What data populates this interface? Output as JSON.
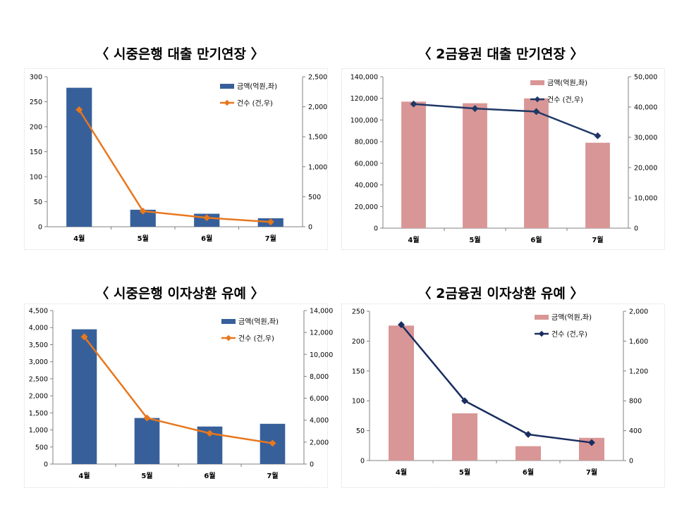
{
  "charts": [
    {
      "type": "bar+line",
      "title": "〈 시중은행 대출 만기연장 〉",
      "categories": [
        "4월",
        "5월",
        "6월",
        "7월"
      ],
      "series": [
        {
          "name": "금액(억원,좌)",
          "kind": "bar",
          "axis": "left",
          "values": [
            278,
            34,
            26,
            17
          ],
          "color": "#37609a"
        },
        {
          "name": "건수 (건,우)",
          "kind": "line",
          "axis": "right",
          "values": [
            1950,
            260,
            150,
            80
          ],
          "color": "#e8771e"
        }
      ],
      "left_axis": {
        "min": 0,
        "max": 300,
        "ticks": [
          "0",
          "50",
          "100",
          "150",
          "200",
          "250",
          "300"
        ]
      },
      "right_axis": {
        "min": 0,
        "max": 2500,
        "ticks": [
          "0",
          "500",
          "1,000",
          "1,500",
          "2,000",
          "2,500"
        ]
      },
      "legend_position": "top-right"
    },
    {
      "type": "bar+line",
      "title": "〈 2금융권 대출 만기연장 〉",
      "categories": [
        "4월",
        "5월",
        "6월",
        "7월"
      ],
      "series": [
        {
          "name": "금액(억원,좌)",
          "kind": "bar",
          "axis": "left",
          "values": [
            117000,
            115500,
            120000,
            79000
          ],
          "color": "#d99696"
        },
        {
          "name": "건수 (건,우)",
          "kind": "line",
          "axis": "right",
          "values": [
            41000,
            39500,
            38500,
            30500
          ],
          "color": "#1f3866"
        }
      ],
      "left_axis": {
        "min": 0,
        "max": 140000,
        "ticks": [
          "0",
          "20,000",
          "40,000",
          "60,000",
          "80,000",
          "100,000",
          "120,000",
          "140,000"
        ]
      },
      "right_axis": {
        "min": 0,
        "max": 50000,
        "ticks": [
          "0",
          "10,000",
          "20,000",
          "30,000",
          "40,000",
          "50,000"
        ]
      },
      "legend_position": "top-right"
    },
    {
      "type": "bar+line",
      "title": "〈 시중은행 이자상환 유예 〉",
      "categories": [
        "4월",
        "5월",
        "6월",
        "7월"
      ],
      "series": [
        {
          "name": "금액(억원,좌)",
          "kind": "bar",
          "axis": "left",
          "values": [
            3950,
            1350,
            1100,
            1180
          ],
          "color": "#37609a"
        },
        {
          "name": "건수 (건,우)",
          "kind": "line",
          "axis": "right",
          "values": [
            11600,
            4200,
            2800,
            1900
          ],
          "color": "#e8771e"
        }
      ],
      "left_axis": {
        "min": 0,
        "max": 4500,
        "ticks": [
          "0",
          "500",
          "1,000",
          "1,500",
          "2,000",
          "2,500",
          "3,000",
          "3,500",
          "4,000",
          "4,500"
        ]
      },
      "right_axis": {
        "min": 0,
        "max": 14000,
        "ticks": [
          "0",
          "2,000",
          "4,000",
          "6,000",
          "8,000",
          "10,000",
          "12,000",
          "14,000"
        ]
      },
      "legend_position": "top-right"
    },
    {
      "type": "bar+line",
      "title": "〈 2금융권 이자상환 유예 〉",
      "categories": [
        "4월",
        "5월",
        "6월",
        "7월"
      ],
      "series": [
        {
          "name": "금액(억원,좌)",
          "kind": "bar",
          "axis": "left",
          "values": [
            226,
            79,
            24,
            38
          ],
          "color": "#d99696"
        },
        {
          "name": "건수 (건,우)",
          "kind": "line",
          "axis": "right",
          "values": [
            1820,
            800,
            350,
            240
          ],
          "color": "#1a2d60"
        }
      ],
      "left_axis": {
        "min": 0,
        "max": 250,
        "ticks": [
          "0",
          "50",
          "100",
          "150",
          "200",
          "250"
        ]
      },
      "right_axis": {
        "min": 0,
        "max": 2000,
        "ticks": [
          "0",
          "400",
          "800",
          "1,200",
          "1,600",
          "2,000"
        ]
      },
      "legend_position": "top-right"
    }
  ],
  "chart_data": [
    {
      "type": "bar",
      "title": "〈 시중은행 대출 만기연장 〉",
      "categories": [
        "4월",
        "5월",
        "6월",
        "7월"
      ],
      "series": [
        {
          "name": "금액(억원,좌)",
          "values": [
            278,
            34,
            26,
            17
          ]
        },
        {
          "name": "건수 (건,우)",
          "values": [
            1950,
            260,
            150,
            80
          ]
        }
      ],
      "ylim": [
        0,
        300
      ],
      "y2lim": [
        0,
        2500
      ]
    },
    {
      "type": "bar",
      "title": "〈 2금융권 대출 만기연장 〉",
      "categories": [
        "4월",
        "5월",
        "6월",
        "7월"
      ],
      "series": [
        {
          "name": "금액(억원,좌)",
          "values": [
            117000,
            115500,
            120000,
            79000
          ]
        },
        {
          "name": "건수 (건,우)",
          "values": [
            41000,
            39500,
            38500,
            30500
          ]
        }
      ],
      "ylim": [
        0,
        140000
      ],
      "y2lim": [
        0,
        50000
      ]
    },
    {
      "type": "bar",
      "title": "〈 시중은행 이자상환 유예 〉",
      "categories": [
        "4월",
        "5월",
        "6월",
        "7월"
      ],
      "series": [
        {
          "name": "금액(억원,좌)",
          "values": [
            3950,
            1350,
            1100,
            1180
          ]
        },
        {
          "name": "건수 (건,우)",
          "values": [
            11600,
            4200,
            2800,
            1900
          ]
        }
      ],
      "ylim": [
        0,
        4500
      ],
      "y2lim": [
        0,
        14000
      ]
    },
    {
      "type": "bar",
      "title": "〈 2금융권 이자상환 유예 〉",
      "categories": [
        "4월",
        "5월",
        "6월",
        "7월"
      ],
      "series": [
        {
          "name": "금액(억원,좌)",
          "values": [
            226,
            79,
            24,
            38
          ]
        },
        {
          "name": "건수 (건,우)",
          "values": [
            1820,
            800,
            350,
            240
          ]
        }
      ],
      "ylim": [
        0,
        250
      ],
      "y2lim": [
        0,
        2000
      ]
    }
  ]
}
